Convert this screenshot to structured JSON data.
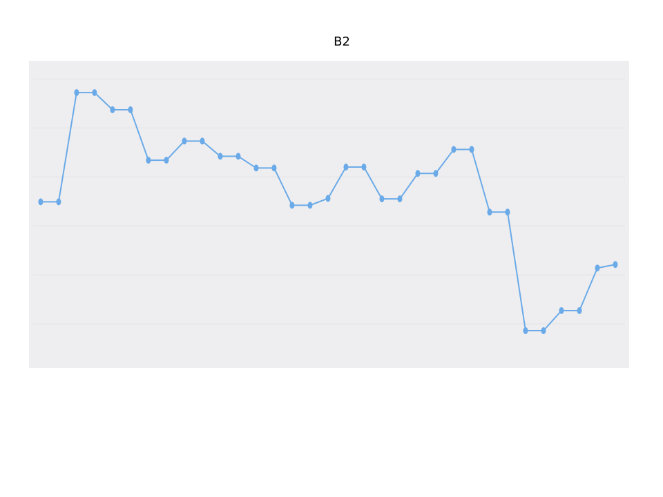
{
  "chart_data": {
    "type": "line",
    "title": "B2",
    "xlabel": "",
    "ylabel": "",
    "x": [
      0,
      1,
      2,
      3,
      4,
      5,
      6,
      7,
      8,
      9,
      10,
      11,
      12,
      13,
      14,
      15,
      16,
      17,
      18,
      19,
      20,
      21,
      22,
      23,
      24,
      25,
      26,
      27,
      28,
      29,
      30,
      31,
      32
    ],
    "series": [
      {
        "values": [
          2.49,
          2.49,
          4.72,
          4.72,
          4.37,
          4.37,
          3.34,
          3.34,
          3.73,
          3.73,
          3.42,
          3.42,
          3.18,
          3.18,
          2.42,
          2.42,
          2.56,
          3.2,
          3.2,
          2.55,
          2.55,
          3.07,
          3.07,
          3.56,
          3.56,
          2.28,
          2.28,
          -0.14,
          -0.14,
          0.27,
          0.27,
          1.14,
          1.21
        ],
        "color": "#6aaae8"
      }
    ],
    "xlim": [
      -0.65,
      32.77
    ],
    "ylim": [
      -0.9,
      5.37
    ],
    "grid_y": [
      0,
      1,
      2,
      3,
      4,
      5
    ],
    "grid": true,
    "axis_tick_labels_shown": false,
    "legend": "none",
    "plot_background": "#eeeef0",
    "grid_color": "#e2e2e4"
  }
}
